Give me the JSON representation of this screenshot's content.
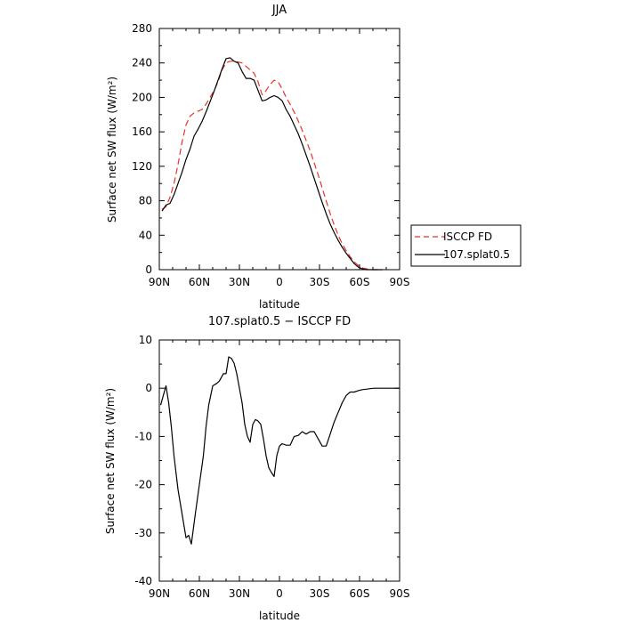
{
  "chart_data": [
    {
      "type": "line",
      "title": "JJA",
      "xlabel": "latitude",
      "ylabel": "Surface net SW flux (W/m²)",
      "xlim": [
        90,
        -90
      ],
      "ylim": [
        0,
        280
      ],
      "x_tick_labels": [
        "90N",
        "60N",
        "30N",
        "0",
        "30S",
        "60S",
        "90S"
      ],
      "x_ticks": [
        90,
        60,
        30,
        0,
        -30,
        -60,
        -90
      ],
      "y_ticks": [
        0,
        40,
        80,
        120,
        160,
        200,
        240,
        280
      ],
      "legend": {
        "placement": "right",
        "entries": [
          "ISCCP FD",
          "107.splat0.5"
        ]
      },
      "series": [
        {
          "name": "ISCCP FD",
          "color": "#e8302a",
          "style": "dashed",
          "x": [
            88,
            85,
            82,
            79,
            76,
            73,
            70,
            67,
            64,
            61,
            58,
            55,
            52,
            49,
            46,
            43,
            40,
            37,
            34,
            31,
            28,
            25,
            22,
            19,
            16,
            13,
            10,
            7,
            4,
            1,
            -2,
            -5,
            -8,
            -11,
            -14,
            -17,
            -20,
            -23,
            -26,
            -29,
            -32,
            -35,
            -38,
            -41,
            -44,
            -47,
            -50,
            -53,
            -56,
            -59,
            -62,
            -65,
            -68,
            -71,
            -74,
            -77
          ],
          "values": [
            70,
            73,
            84,
            100,
            122,
            148,
            168,
            178,
            182,
            184,
            186,
            192,
            200,
            208,
            218,
            232,
            240,
            242,
            242,
            241,
            240,
            236,
            232,
            228,
            218,
            203,
            208,
            215,
            220,
            218,
            210,
            200,
            192,
            183,
            173,
            162,
            150,
            138,
            124,
            110,
            95,
            80,
            65,
            52,
            40,
            30,
            22,
            15,
            9,
            5,
            2,
            1,
            0,
            0,
            0,
            0
          ]
        },
        {
          "name": "107.splat0.5",
          "color": "#000000",
          "style": "solid",
          "x": [
            88,
            85,
            82,
            79,
            76,
            73,
            70,
            67,
            64,
            61,
            58,
            55,
            52,
            49,
            46,
            43,
            40,
            37,
            34,
            31,
            28,
            25,
            22,
            19,
            16,
            13,
            10,
            7,
            4,
            1,
            -2,
            -5,
            -8,
            -11,
            -14,
            -17,
            -20,
            -23,
            -26,
            -29,
            -32,
            -35,
            -38,
            -41,
            -44,
            -47,
            -50,
            -53,
            -56,
            -59,
            -62,
            -65,
            -68,
            -71,
            -74,
            -77
          ],
          "values": [
            68,
            75,
            77,
            87,
            100,
            113,
            128,
            140,
            155,
            163,
            172,
            183,
            195,
            207,
            220,
            233,
            245,
            246,
            242,
            240,
            230,
            222,
            222,
            220,
            208,
            196,
            197,
            200,
            202,
            200,
            196,
            186,
            178,
            168,
            158,
            146,
            133,
            120,
            106,
            92,
            78,
            65,
            53,
            43,
            34,
            26,
            19,
            13,
            7,
            3,
            1,
            0,
            0,
            0,
            0,
            0
          ]
        }
      ]
    },
    {
      "type": "line",
      "title": "107.splat0.5 − ISCCP FD",
      "xlabel": "latitude",
      "ylabel": "Surface net SW flux (W/m²)",
      "xlim": [
        90,
        -90
      ],
      "ylim": [
        -40,
        10
      ],
      "x_tick_labels": [
        "90N",
        "60N",
        "30N",
        "0",
        "30S",
        "60S",
        "90S"
      ],
      "x_ticks": [
        90,
        60,
        30,
        0,
        -30,
        -60,
        -90
      ],
      "y_ticks": [
        -40,
        -30,
        -20,
        -10,
        0,
        10
      ],
      "series": [
        {
          "name": "",
          "color": "#000000",
          "style": "solid",
          "x": [
            89,
            87,
            85,
            83,
            81,
            79,
            76,
            73,
            70,
            68,
            66,
            63,
            60,
            57,
            55,
            53,
            50,
            47,
            45,
            42,
            40,
            38,
            36,
            34,
            32,
            30,
            28,
            26,
            24,
            22,
            20,
            18,
            16,
            14,
            12,
            10,
            8,
            6,
            4,
            2,
            0,
            -2,
            -5,
            -8,
            -11,
            -14,
            -17,
            -20,
            -23,
            -26,
            -29,
            -32,
            -35,
            -38,
            -41,
            -44,
            -47,
            -50,
            -53,
            -56,
            -59,
            -62,
            -65,
            -68,
            -71,
            -75,
            -80,
            -85,
            -90
          ],
          "values": [
            -3.5,
            -1.5,
            0.5,
            -3,
            -8,
            -14,
            -21,
            -26,
            -31,
            -30.5,
            -32.3,
            -26,
            -20,
            -14,
            -8,
            -3.5,
            0.5,
            1,
            1.5,
            3,
            3,
            6.5,
            6.2,
            5.2,
            3,
            0,
            -3,
            -7.5,
            -10,
            -11.2,
            -7.5,
            -6.5,
            -6.8,
            -7.5,
            -10.5,
            -14,
            -16.5,
            -17.5,
            -18.3,
            -14,
            -12,
            -11.5,
            -11.8,
            -11.8,
            -10,
            -9.8,
            -9,
            -9.5,
            -9,
            -9,
            -10.5,
            -12,
            -12,
            -9.5,
            -7,
            -5,
            -3,
            -1.5,
            -0.8,
            -0.8,
            -0.5,
            -0.3,
            -0.2,
            -0.1,
            0,
            0,
            0,
            0,
            0
          ]
        }
      ]
    }
  ]
}
